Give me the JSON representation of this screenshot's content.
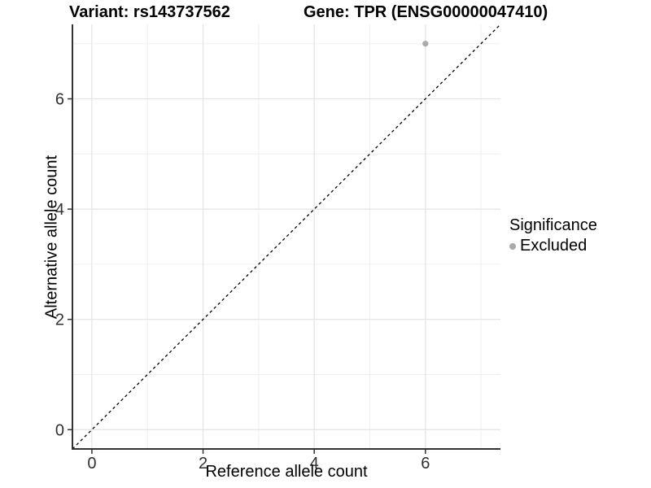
{
  "chart_data": {
    "type": "scatter",
    "title_left": "Variant: rs143737562",
    "title_right": "Gene: TPR (ENSG00000047410)",
    "xlabel": "Reference allele count",
    "ylabel": "Alternative allele count",
    "xlim": [
      -0.35,
      7.35
    ],
    "ylim": [
      -0.35,
      7.35
    ],
    "x_ticks": [
      0,
      2,
      4,
      6
    ],
    "y_ticks": [
      0,
      2,
      4,
      6
    ],
    "x_minor_gridlines": [
      1,
      3,
      5,
      7
    ],
    "y_minor_gridlines": [
      1,
      3,
      5,
      7
    ],
    "grid": true,
    "legend_title": "Significance",
    "legend_position": "right",
    "series": [
      {
        "name": "Excluded",
        "color": "#aaaaaa",
        "points": [
          {
            "x": 6,
            "y": 7
          }
        ]
      }
    ],
    "reference_line": {
      "type": "identity",
      "slope": 1,
      "intercept": 0,
      "style": "dashed",
      "color": "#000000"
    }
  },
  "style": {
    "background_color": "#ffffff",
    "major_grid_color": "#e3e3e3",
    "minor_grid_color": "#efefef",
    "axis_line_color": "#333333",
    "tick_label_color": "#303030",
    "point_color": "#aaaaaa",
    "title_color": "#000000"
  }
}
